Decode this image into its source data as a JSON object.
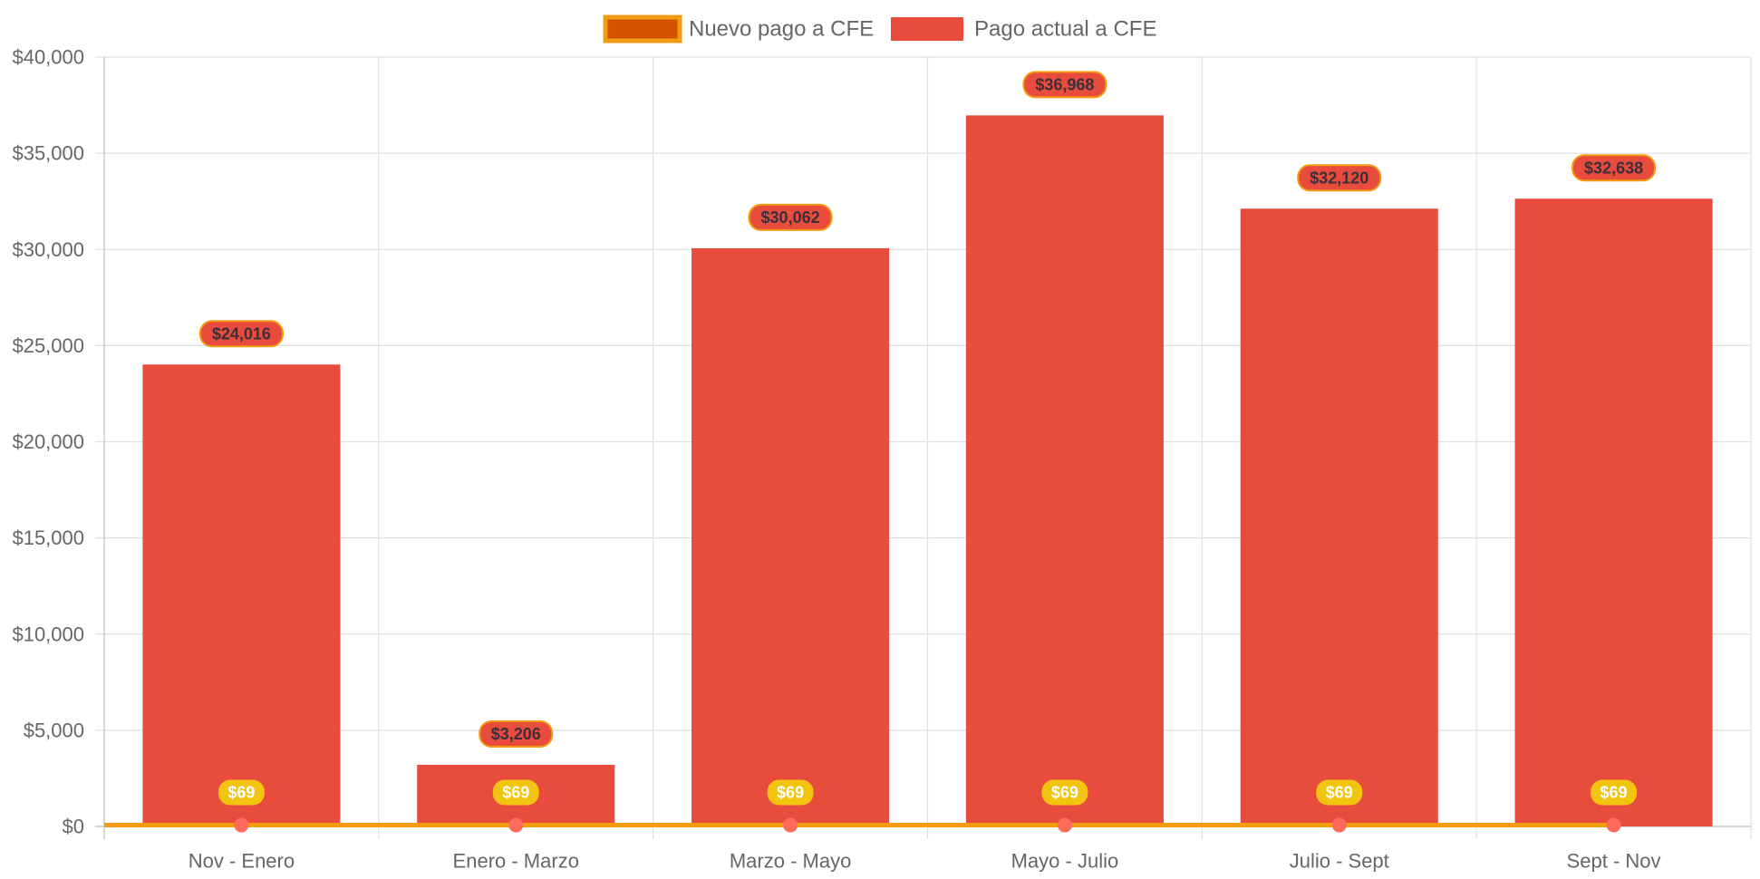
{
  "chart_data": {
    "type": "bar",
    "categories": [
      "Nov - Enero",
      "Enero - Marzo",
      "Marzo - Mayo",
      "Mayo - Julio",
      "Julio - Sept",
      "Sept - Nov"
    ],
    "series": [
      {
        "name": "Pago actual a CFE",
        "type": "bar",
        "values": [
          24016,
          3206,
          30062,
          36968,
          32120,
          32638
        ],
        "labels": [
          "$24,016",
          "$3,206",
          "$30,062",
          "$36,968",
          "$32,120",
          "$32,638"
        ],
        "color": "#e74c3c"
      },
      {
        "name": "Nuevo pago a CFE",
        "type": "line",
        "values": [
          69,
          69,
          69,
          69,
          69,
          69
        ],
        "labels": [
          "$69",
          "$69",
          "$69",
          "$69",
          "$69",
          "$69"
        ],
        "color": "#f39c12",
        "legend_fill": "#d35400",
        "label_color": "#f1c40f",
        "point_color": "#ff6b5b"
      }
    ],
    "ylim": [
      0,
      40000
    ],
    "yticks": [
      0,
      5000,
      10000,
      15000,
      20000,
      25000,
      30000,
      35000,
      40000
    ],
    "ytick_labels": [
      "$0",
      "$5,000",
      "$10,000",
      "$15,000",
      "$20,000",
      "$25,000",
      "$30,000",
      "$35,000",
      "$40,000"
    ],
    "legend": {
      "position": "top-center",
      "order": [
        "Nuevo pago a CFE",
        "Pago actual a CFE"
      ]
    },
    "grid": true,
    "title": "",
    "xlabel": "",
    "ylabel": ""
  }
}
